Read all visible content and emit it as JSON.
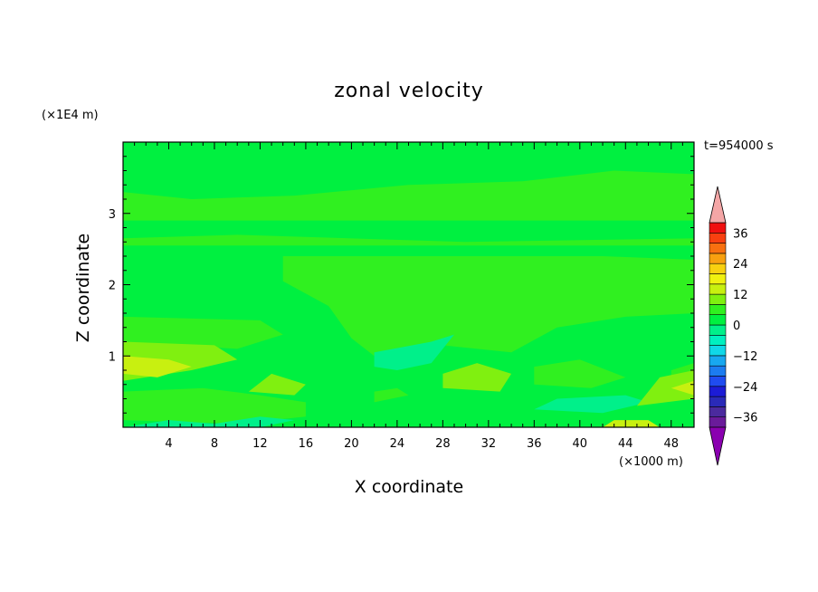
{
  "chart_data": {
    "type": "heatmap",
    "title": "zonal velocity",
    "xlabel": "X coordinate",
    "ylabel": "Z coordinate",
    "x_unit": "(×1000 m)",
    "y_unit": "(×1E4 m)",
    "time_label": "t=954000 s",
    "xlim": [
      0,
      50
    ],
    "ylim": [
      0,
      4
    ],
    "x_ticks": [
      4,
      8,
      12,
      16,
      20,
      24,
      28,
      32,
      36,
      40,
      44,
      48
    ],
    "y_ticks": [
      1,
      2,
      3
    ],
    "colorbar": {
      "levels": [
        -40,
        -36,
        -32,
        -28,
        -24,
        -20,
        -16,
        -12,
        -8,
        -4,
        0,
        4,
        8,
        12,
        16,
        20,
        24,
        28,
        32,
        36,
        40
      ],
      "tick_labels": [
        36,
        24,
        12,
        0,
        -12,
        -24,
        -36
      ],
      "colors": [
        "#6a1b9a",
        "#4b2a9e",
        "#2a2ab8",
        "#1c1cd6",
        "#1f4cf0",
        "#1c7cf0",
        "#18a8f0",
        "#10d8e8",
        "#00f0c0",
        "#00f08a",
        "#00f040",
        "#30f020",
        "#80f010",
        "#c8f010",
        "#f0f010",
        "#f8d010",
        "#f8a010",
        "#f87010",
        "#f84010",
        "#f01010"
      ],
      "extend_high_color": "#f4a6a6",
      "extend_low_color": "#8a00b0"
    },
    "regions": [
      {
        "level": 0,
        "points": [
          [
            0,
            0
          ],
          [
            50,
            0
          ],
          [
            50,
            4
          ],
          [
            0,
            4
          ]
        ]
      },
      {
        "level": 4,
        "points": [
          [
            0,
            2.9
          ],
          [
            50,
            2.9
          ],
          [
            50,
            3.55
          ],
          [
            43,
            3.6
          ],
          [
            35,
            3.45
          ],
          [
            25,
            3.4
          ],
          [
            15,
            3.25
          ],
          [
            6,
            3.2
          ],
          [
            0,
            3.3
          ]
        ]
      },
      {
        "level": 4,
        "points": [
          [
            0,
            2.55
          ],
          [
            50,
            2.55
          ],
          [
            50,
            2.65
          ],
          [
            30,
            2.6
          ],
          [
            10,
            2.7
          ],
          [
            0,
            2.65
          ]
        ]
      },
      {
        "level": 4,
        "points": [
          [
            14,
            2.4
          ],
          [
            42,
            2.4
          ],
          [
            50,
            2.35
          ],
          [
            50,
            1.6
          ],
          [
            44,
            1.55
          ],
          [
            38,
            1.4
          ],
          [
            34,
            1.05
          ],
          [
            28,
            1.15
          ],
          [
            22,
            1.0
          ],
          [
            20,
            1.25
          ],
          [
            18,
            1.7
          ],
          [
            14,
            2.05
          ]
        ]
      },
      {
        "level": 4,
        "points": [
          [
            0,
            1.55
          ],
          [
            12,
            1.5
          ],
          [
            14,
            1.3
          ],
          [
            10,
            1.1
          ],
          [
            0,
            1.2
          ]
        ]
      },
      {
        "level": 4,
        "points": [
          [
            36,
            0.6
          ],
          [
            41,
            0.55
          ],
          [
            44,
            0.7
          ],
          [
            40,
            0.95
          ],
          [
            36,
            0.85
          ]
        ]
      },
      {
        "level": 4,
        "points": [
          [
            48,
            0.8
          ],
          [
            50,
            0.9
          ],
          [
            50,
            0.6
          ],
          [
            48,
            0.65
          ]
        ]
      },
      {
        "level": 4,
        "points": [
          [
            0,
            0.5
          ],
          [
            7,
            0.55
          ],
          [
            12,
            0.45
          ],
          [
            16,
            0.35
          ],
          [
            16,
            0.15
          ],
          [
            10,
            0.05
          ],
          [
            0,
            0.1
          ]
        ]
      },
      {
        "level": 4,
        "points": [
          [
            22,
            0.5
          ],
          [
            24,
            0.55
          ],
          [
            25,
            0.45
          ],
          [
            22,
            0.35
          ]
        ]
      },
      {
        "level": -4,
        "points": [
          [
            22,
            1.05
          ],
          [
            27,
            1.2
          ],
          [
            29,
            1.3
          ],
          [
            27,
            0.9
          ],
          [
            24,
            0.8
          ],
          [
            22,
            0.85
          ]
        ]
      },
      {
        "level": -4,
        "points": [
          [
            0,
            0.0
          ],
          [
            4,
            0.1
          ],
          [
            8,
            0.05
          ],
          [
            12,
            0.15
          ],
          [
            15,
            0.1
          ],
          [
            12,
            0.0
          ]
        ]
      },
      {
        "level": -4,
        "points": [
          [
            36,
            0.25
          ],
          [
            42,
            0.2
          ],
          [
            46,
            0.35
          ],
          [
            44,
            0.45
          ],
          [
            38,
            0.4
          ]
        ]
      },
      {
        "level": 8,
        "points": [
          [
            0,
            1.2
          ],
          [
            8,
            1.15
          ],
          [
            10,
            0.95
          ],
          [
            6,
            0.8
          ],
          [
            0,
            0.65
          ]
        ]
      },
      {
        "level": 8,
        "points": [
          [
            28,
            0.55
          ],
          [
            33,
            0.5
          ],
          [
            34,
            0.75
          ],
          [
            31,
            0.9
          ],
          [
            28,
            0.75
          ]
        ]
      },
      {
        "level": 8,
        "points": [
          [
            45,
            0.3
          ],
          [
            50,
            0.4
          ],
          [
            50,
            0.8
          ],
          [
            47,
            0.7
          ]
        ]
      },
      {
        "level": 8,
        "points": [
          [
            11,
            0.5
          ],
          [
            15,
            0.45
          ],
          [
            16,
            0.6
          ],
          [
            13,
            0.75
          ]
        ]
      },
      {
        "level": 12,
        "points": [
          [
            0,
            1.0
          ],
          [
            4,
            0.95
          ],
          [
            6,
            0.85
          ],
          [
            3,
            0.7
          ],
          [
            0,
            0.75
          ]
        ]
      },
      {
        "level": 12,
        "points": [
          [
            48,
            0.55
          ],
          [
            50,
            0.65
          ],
          [
            50,
            0.45
          ]
        ]
      },
      {
        "level": 12,
        "points": [
          [
            42,
            0.0
          ],
          [
            47,
            0.0
          ],
          [
            46,
            0.1
          ],
          [
            43,
            0.1
          ]
        ]
      }
    ]
  }
}
